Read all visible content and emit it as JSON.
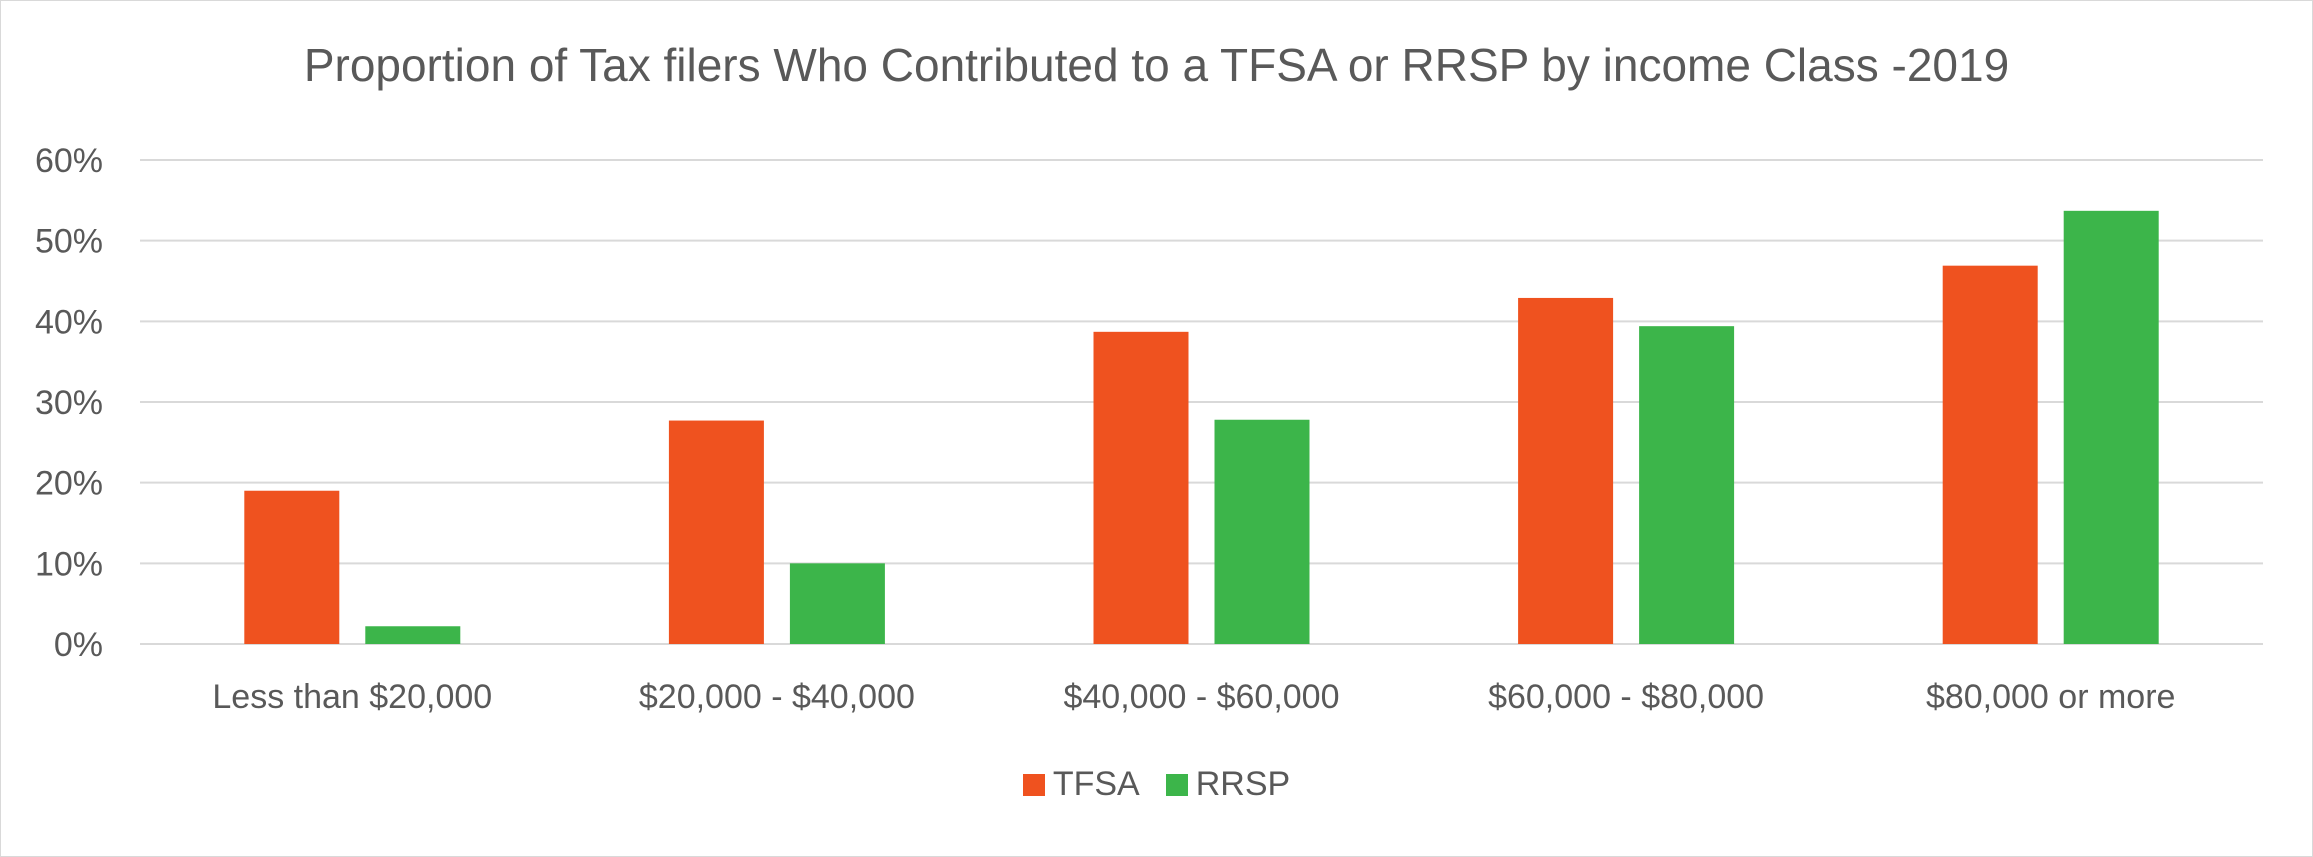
{
  "chart_data": {
    "type": "bar",
    "title": "Proportion of Tax filers Who Contributed to a TFSA or RRSP by income Class -2019",
    "categories": [
      "Less than $20,000",
      "$20,000 - $40,000",
      "$40,000 - $60,000",
      "$60,000 - $80,000",
      "$80,000 or more"
    ],
    "series": [
      {
        "name": "TFSA",
        "color": "#ef521f",
        "values": [
          19,
          27.7,
          38.7,
          42.9,
          46.9
        ]
      },
      {
        "name": "RRSP",
        "color": "#3cb54a",
        "values": [
          2.2,
          10,
          27.8,
          39.4,
          53.7
        ]
      }
    ],
    "ylim": [
      0,
      60
    ],
    "yticks": [
      "0%",
      "10%",
      "20%",
      "30%",
      "40%",
      "50%",
      "60%"
    ],
    "grid": true,
    "legend_position": "bottom"
  }
}
